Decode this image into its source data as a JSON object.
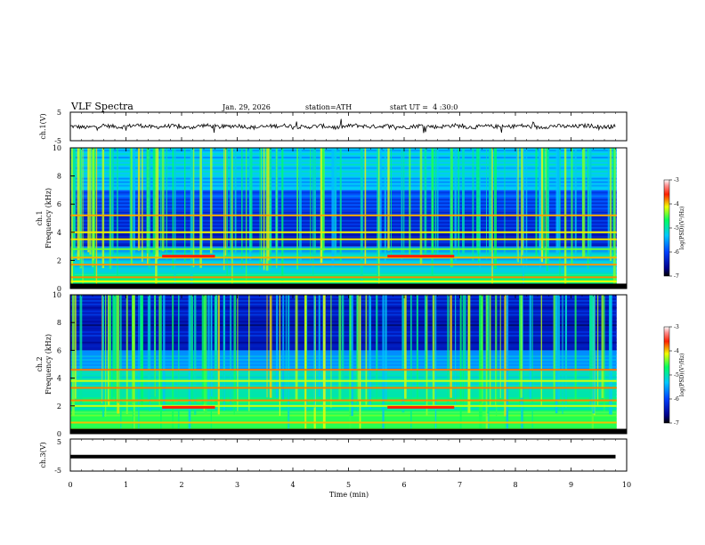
{
  "header": {
    "title": "VLF Spectra",
    "date": "Jan. 29, 2026",
    "station": "station=ATH",
    "start": "start UT =  4 :30:0"
  },
  "chart_data": [
    {
      "type": "line",
      "title": "",
      "ylabel": "ch.1(V)",
      "ylim": [
        -5,
        5
      ],
      "yticks": [
        "5",
        "-5"
      ],
      "x": [
        0,
        0.3,
        0.6,
        0.9,
        1.2,
        1.5,
        1.8,
        2.1,
        2.4,
        2.7,
        3.0,
        3.3,
        3.6,
        3.9,
        4.2,
        4.5,
        4.8,
        5.1,
        5.4,
        5.7,
        6.0,
        6.3,
        6.6,
        6.9,
        7.2,
        7.5,
        7.8,
        8.1,
        8.4,
        8.7,
        9.0,
        9.3,
        9.6,
        9.8
      ],
      "values": [
        0.1,
        -0.4,
        0.3,
        -0.2,
        0.5,
        -0.3,
        0.2,
        -0.5,
        0.4,
        -0.2,
        0.3,
        -0.4,
        0.1,
        0.3,
        -0.3,
        0.2,
        -0.4,
        0.4,
        -0.1,
        0.2,
        -0.3,
        0.3,
        -0.2,
        0.4,
        -0.3,
        0.1,
        -0.2,
        0.3,
        -0.4,
        0.2,
        -0.1,
        0.3,
        -0.2,
        0.1
      ]
    },
    {
      "type": "heatmap",
      "title": "",
      "channel": "ch.1",
      "ylabel": "Frequency (kHz)",
      "ylim": [
        0,
        10
      ],
      "yticks": [
        "0",
        "2",
        "4",
        "6",
        "8",
        "10"
      ],
      "colorbar": {
        "label": "log(PSD)(V²/Hz)",
        "ticks": [
          "-3",
          "-4",
          "-5",
          "-6",
          "-7"
        ],
        "range": [
          -7,
          -3
        ]
      },
      "bands": [
        {
          "from": 0,
          "to": 1,
          "level": -4.8
        },
        {
          "from": 1,
          "to": 2.5,
          "level": -5.2
        },
        {
          "from": 2.5,
          "to": 3,
          "level": -5.6
        },
        {
          "from": 3,
          "to": 5.5,
          "level": -6.3
        },
        {
          "from": 5.5,
          "to": 7,
          "level": -5.9
        },
        {
          "from": 7,
          "to": 10,
          "level": -5.3
        }
      ],
      "lines_khz": [
        0.2,
        0.5,
        0.8,
        1.7,
        2.2,
        2.8,
        3.5,
        4.0,
        5.2
      ],
      "segments": [
        {
          "from_min": 1.65,
          "to_min": 2.6,
          "khz": 2.3
        },
        {
          "from_min": 5.7,
          "to_min": 6.9,
          "khz": 2.3
        }
      ]
    },
    {
      "type": "heatmap",
      "title": "",
      "channel": "ch.2",
      "ylabel": "Frequency (kHz)",
      "ylim": [
        0,
        10
      ],
      "yticks": [
        "0",
        "2",
        "4",
        "6",
        "8",
        "10"
      ],
      "colorbar": {
        "label": "log(PSD)(V²/Hz)",
        "ticks": [
          "-3",
          "-4",
          "-5",
          "-6",
          "-7"
        ],
        "range": [
          -7,
          -3
        ]
      },
      "bands": [
        {
          "from": 0,
          "to": 1.5,
          "level": -4.6
        },
        {
          "from": 1.5,
          "to": 2.5,
          "level": -4.8
        },
        {
          "from": 2.5,
          "to": 4.5,
          "level": -5.0
        },
        {
          "from": 4.5,
          "to": 6,
          "level": -5.6
        },
        {
          "from": 6,
          "to": 10,
          "level": -6.4
        }
      ],
      "lines_khz": [
        0.3,
        0.8,
        2.0,
        2.4,
        3.3,
        3.8,
        4.6
      ],
      "segments": [
        {
          "from_min": 1.65,
          "to_min": 2.6,
          "khz": 1.9
        },
        {
          "from_min": 5.7,
          "to_min": 6.9,
          "khz": 1.9
        }
      ]
    },
    {
      "type": "line",
      "title": "",
      "ylabel": "ch.3(V)",
      "ylim": [
        -5,
        5
      ],
      "yticks": [
        "5",
        "-5"
      ],
      "x": [
        0,
        9.8
      ],
      "values": [
        -0.5,
        -0.5
      ]
    }
  ],
  "xaxis": {
    "label": "Time (min)",
    "range": [
      0,
      10
    ],
    "ticks": [
      "0",
      "1",
      "2",
      "3",
      "4",
      "5",
      "6",
      "7",
      "8",
      "9",
      "10"
    ]
  }
}
